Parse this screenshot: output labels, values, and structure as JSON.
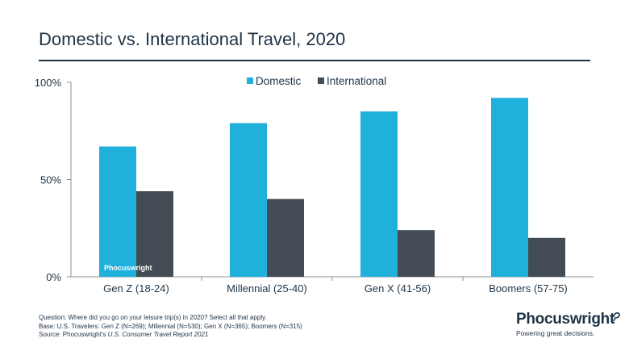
{
  "title": "Domestic vs. International Travel, 2020",
  "colors": {
    "domestic": "#1fb0dc",
    "international": "#434c54",
    "text": "#1f3346",
    "axis": "#8a8f94"
  },
  "chart_data": {
    "type": "bar",
    "categories": [
      "Gen Z (18-24)",
      "Millennial (25-40)",
      "Gen X (41-56)",
      "Boomers (57-75)"
    ],
    "series": [
      {
        "name": "Domestic",
        "values": [
          67,
          79,
          85,
          92
        ]
      },
      {
        "name": "International",
        "values": [
          44,
          40,
          24,
          20
        ]
      }
    ],
    "ylim": [
      0,
      100
    ],
    "yticks": [
      0,
      50,
      100
    ],
    "ytick_labels": [
      "0%",
      "50%",
      "100%"
    ],
    "grid": false,
    "legend_position": "top-center",
    "watermark": "Phocuswright"
  },
  "footnote": {
    "question": "Question: Where did you go on your leisure trip(s) in 2020? Select all that apply.",
    "base": "Base: U.S. Travelers: Gen Z (N=269); Millennial (N=530); Gen X (N=365); Boomers (N=315)",
    "source_prefix": "Source: Phocuswright's ",
    "source_title": "U.S. Consumer Travel Report 2021"
  },
  "brand": {
    "name": "Phocuswright",
    "tagline": "Powering great decisions."
  }
}
